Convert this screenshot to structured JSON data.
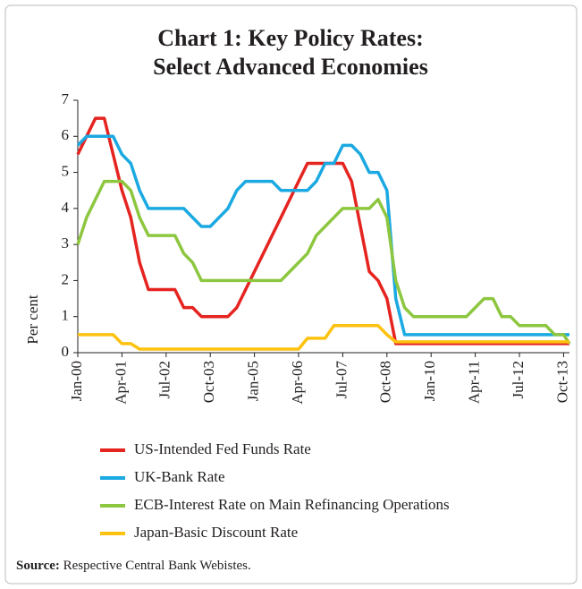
{
  "chart_data": {
    "type": "line",
    "title": [
      "Chart 1: Key Policy Rates:",
      "Select Advanced Economies"
    ],
    "ylabel": "Per cent",
    "source_label": "Source:",
    "source_text": "Respective Central Bank Webistes.",
    "x": [
      "2000-01",
      "2000-04",
      "2000-07",
      "2000-10",
      "2001-01",
      "2001-04",
      "2001-07",
      "2001-10",
      "2002-01",
      "2002-04",
      "2002-07",
      "2002-10",
      "2003-01",
      "2003-04",
      "2003-07",
      "2003-10",
      "2004-01",
      "2004-04",
      "2004-07",
      "2004-10",
      "2005-01",
      "2005-04",
      "2005-07",
      "2005-10",
      "2006-01",
      "2006-04",
      "2006-07",
      "2006-10",
      "2007-01",
      "2007-04",
      "2007-07",
      "2007-10",
      "2008-01",
      "2008-04",
      "2008-07",
      "2008-10",
      "2009-01",
      "2009-04",
      "2009-07",
      "2009-10",
      "2010-01",
      "2010-04",
      "2010-07",
      "2010-10",
      "2011-01",
      "2011-04",
      "2011-07",
      "2011-10",
      "2012-01",
      "2012-04",
      "2012-07",
      "2012-10",
      "2013-01",
      "2013-04",
      "2013-07",
      "2013-10",
      "2013-12"
    ],
    "series": [
      {
        "name": "US-Intended Fed Funds Rate",
        "color": "#e52420",
        "values": [
          5.5,
          6.0,
          6.5,
          6.5,
          5.5,
          4.5,
          3.75,
          2.5,
          1.75,
          1.75,
          1.75,
          1.75,
          1.25,
          1.25,
          1.0,
          1.0,
          1.0,
          1.0,
          1.25,
          1.75,
          2.25,
          2.75,
          3.25,
          3.75,
          4.25,
          4.75,
          5.25,
          5.25,
          5.25,
          5.25,
          5.25,
          4.75,
          3.5,
          2.25,
          2.0,
          1.5,
          0.25,
          0.25,
          0.25,
          0.25,
          0.25,
          0.25,
          0.25,
          0.25,
          0.25,
          0.25,
          0.25,
          0.25,
          0.25,
          0.25,
          0.25,
          0.25,
          0.25,
          0.25,
          0.25,
          0.25,
          0.25
        ]
      },
      {
        "name": "UK-Bank Rate",
        "color": "#1ba9e1",
        "values": [
          5.75,
          6.0,
          6.0,
          6.0,
          6.0,
          5.5,
          5.25,
          4.5,
          4.0,
          4.0,
          4.0,
          4.0,
          4.0,
          3.75,
          3.5,
          3.5,
          3.75,
          4.0,
          4.5,
          4.75,
          4.75,
          4.75,
          4.75,
          4.5,
          4.5,
          4.5,
          4.5,
          4.75,
          5.25,
          5.25,
          5.75,
          5.75,
          5.5,
          5.0,
          5.0,
          4.5,
          1.5,
          0.5,
          0.5,
          0.5,
          0.5,
          0.5,
          0.5,
          0.5,
          0.5,
          0.5,
          0.5,
          0.5,
          0.5,
          0.5,
          0.5,
          0.5,
          0.5,
          0.5,
          0.5,
          0.5,
          0.5
        ]
      },
      {
        "name": "ECB-Interest Rate on Main Refinancing Operations",
        "color": "#8dc63f",
        "values": [
          3.0,
          3.75,
          4.25,
          4.75,
          4.75,
          4.75,
          4.5,
          3.75,
          3.25,
          3.25,
          3.25,
          3.25,
          2.75,
          2.5,
          2.0,
          2.0,
          2.0,
          2.0,
          2.0,
          2.0,
          2.0,
          2.0,
          2.0,
          2.0,
          2.25,
          2.5,
          2.75,
          3.25,
          3.5,
          3.75,
          4.0,
          4.0,
          4.0,
          4.0,
          4.25,
          3.75,
          2.0,
          1.25,
          1.0,
          1.0,
          1.0,
          1.0,
          1.0,
          1.0,
          1.0,
          1.25,
          1.5,
          1.5,
          1.0,
          1.0,
          0.75,
          0.75,
          0.75,
          0.75,
          0.5,
          0.5,
          0.25
        ]
      },
      {
        "name": "Japan-Basic Discount Rate",
        "color": "#fdc20f",
        "values": [
          0.5,
          0.5,
          0.5,
          0.5,
          0.5,
          0.25,
          0.25,
          0.1,
          0.1,
          0.1,
          0.1,
          0.1,
          0.1,
          0.1,
          0.1,
          0.1,
          0.1,
          0.1,
          0.1,
          0.1,
          0.1,
          0.1,
          0.1,
          0.1,
          0.1,
          0.1,
          0.4,
          0.4,
          0.4,
          0.75,
          0.75,
          0.75,
          0.75,
          0.75,
          0.75,
          0.5,
          0.3,
          0.3,
          0.3,
          0.3,
          0.3,
          0.3,
          0.3,
          0.3,
          0.3,
          0.3,
          0.3,
          0.3,
          0.3,
          0.3,
          0.3,
          0.3,
          0.3,
          0.3,
          0.3,
          0.3,
          0.3
        ]
      }
    ],
    "xlim": [
      "2000-01",
      "2013-12"
    ],
    "xticks": [
      {
        "value": "2000-01",
        "label": "Jan-00"
      },
      {
        "value": "2001-04",
        "label": "Apr-01"
      },
      {
        "value": "2002-07",
        "label": "Jul-02"
      },
      {
        "value": "2003-10",
        "label": "Oct-03"
      },
      {
        "value": "2005-01",
        "label": "Jan-05"
      },
      {
        "value": "2006-04",
        "label": "Apr-06"
      },
      {
        "value": "2007-07",
        "label": "Jul-07"
      },
      {
        "value": "2008-10",
        "label": "Oct-08"
      },
      {
        "value": "2010-01",
        "label": "Jan-10"
      },
      {
        "value": "2011-04",
        "label": "Apr-11"
      },
      {
        "value": "2012-07",
        "label": "Jul-12"
      },
      {
        "value": "2013-10",
        "label": "Oct-13"
      }
    ],
    "ylim": [
      0,
      7
    ],
    "yticks": [
      0,
      1,
      2,
      3,
      4,
      5,
      6,
      7
    ],
    "grid": false
  }
}
